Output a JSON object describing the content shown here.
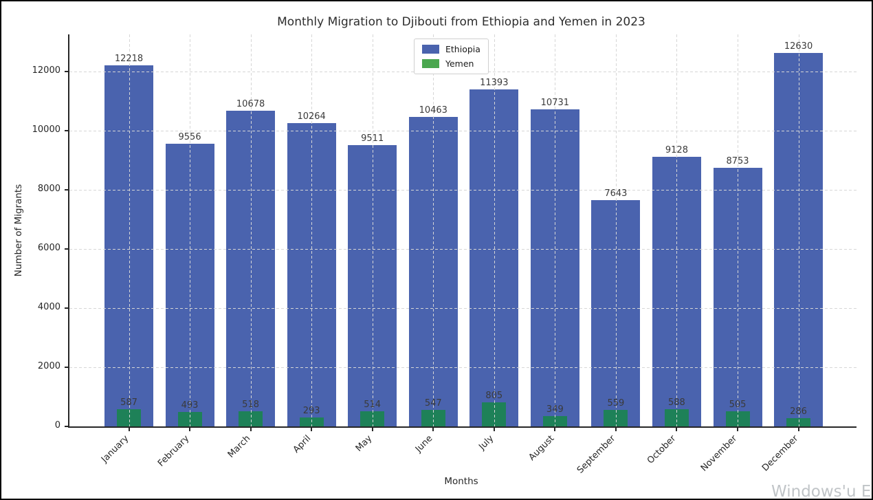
{
  "chart_data": {
    "type": "bar",
    "title": "Monthly Migration to Djibouti from Ethiopia and Yemen in 2023",
    "xlabel": "Months",
    "ylabel": "Number of Migrants",
    "categories": [
      "January",
      "February",
      "March",
      "April",
      "May",
      "June",
      "July",
      "August",
      "September",
      "October",
      "November",
      "December"
    ],
    "series": [
      {
        "name": "Ethiopia",
        "color": "#4a63ae",
        "legend_color": "#4a63ae",
        "values": [
          12218,
          9556,
          10678,
          10264,
          9511,
          10463,
          11393,
          10731,
          7643,
          9128,
          8753,
          12630
        ]
      },
      {
        "name": "Yemen",
        "color": "#1e8158",
        "legend_color": "#4aa74f",
        "values": [
          587,
          493,
          518,
          293,
          514,
          547,
          805,
          349,
          559,
          588,
          505,
          286
        ]
      }
    ],
    "ylim": [
      0,
      13260
    ],
    "yticks": [
      0,
      2000,
      4000,
      6000,
      8000,
      10000,
      12000
    ],
    "grid": "dashed-both-axes",
    "legend_position": "top-center",
    "bar_value_labels": true
  },
  "watermark": {
    "text": "Windows'u Et"
  }
}
